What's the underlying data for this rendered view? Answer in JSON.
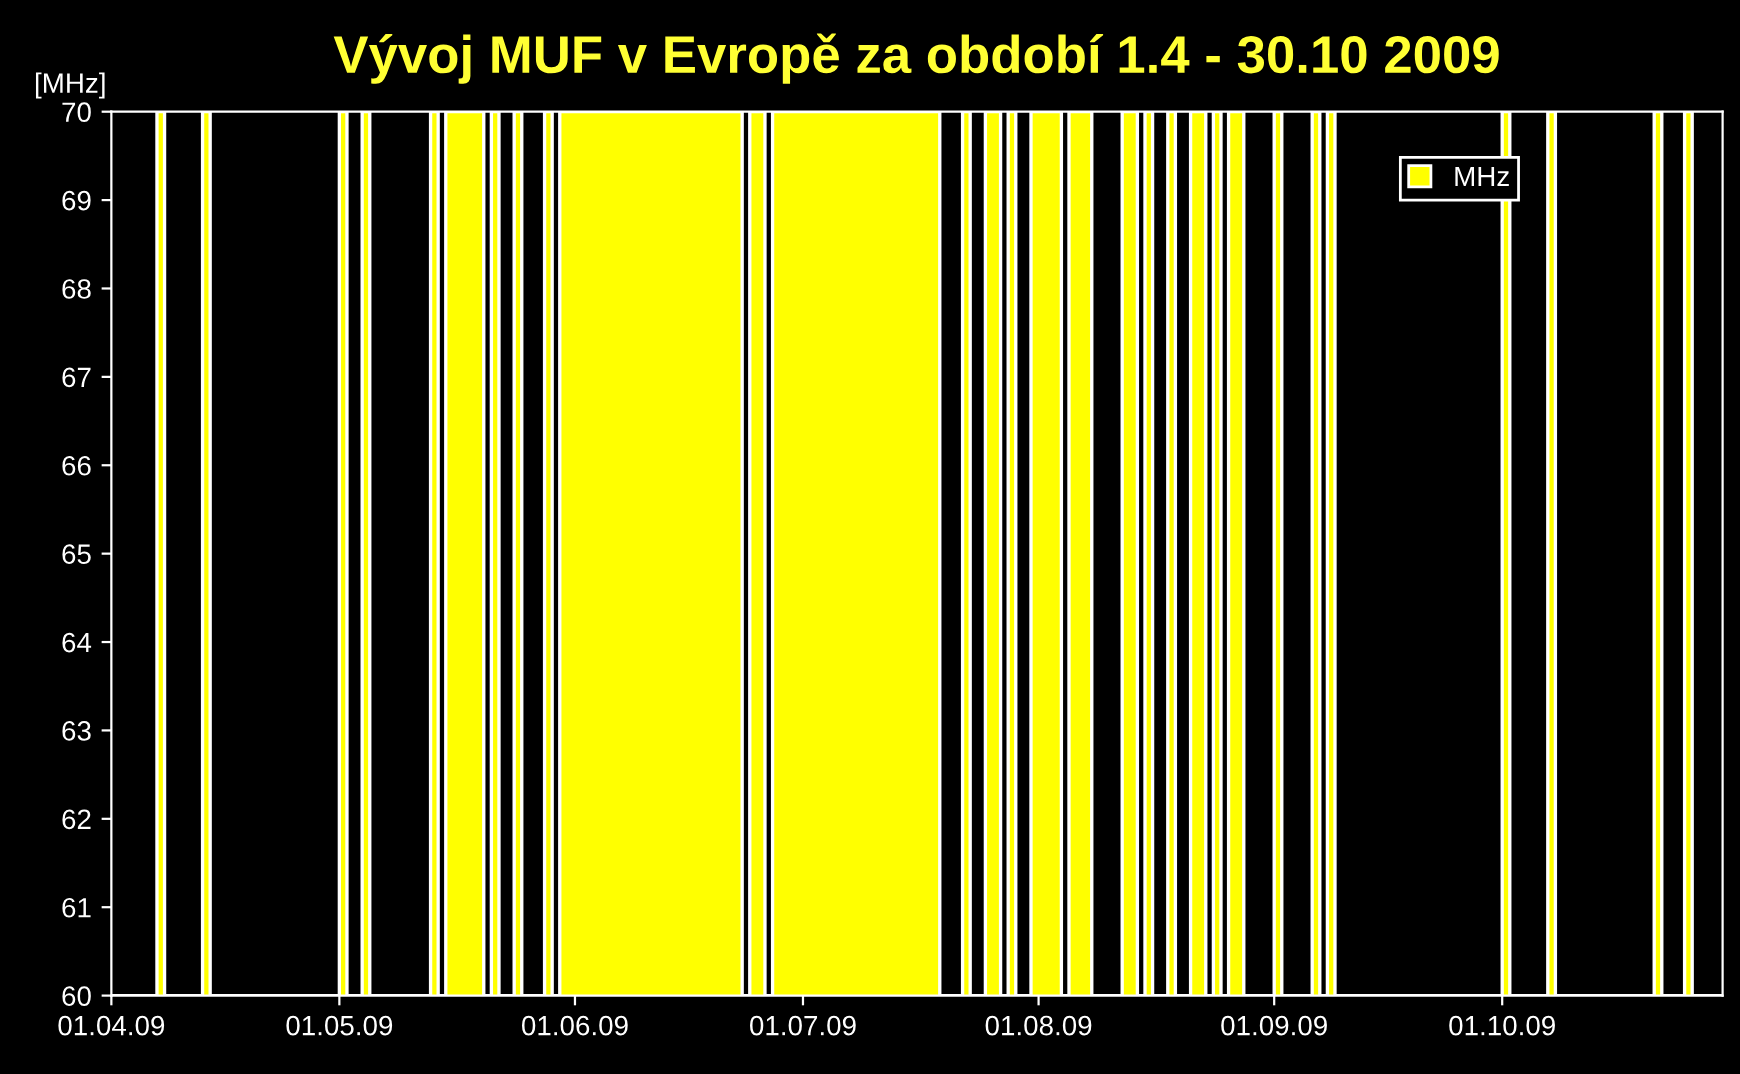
{
  "chart_data": {
    "type": "area",
    "title": "Vývoj MUF v Evropě za období 1.4 - 30.10 2009",
    "ylabel": "[MHz]",
    "series": [
      {
        "name": "MHz",
        "color": "#ffff00",
        "x": [
          "2009-04-01",
          "2009-04-07",
          "2009-04-08",
          "2009-04-13",
          "2009-04-14",
          "2009-05-01",
          "2009-05-02",
          "2009-05-04",
          "2009-05-05",
          "2009-05-13",
          "2009-05-14",
          "2009-05-15",
          "2009-05-20",
          "2009-05-21",
          "2009-05-22",
          "2009-05-24",
          "2009-05-25",
          "2009-05-28",
          "2009-05-29",
          "2009-05-30",
          "2009-06-23",
          "2009-06-24",
          "2009-06-26",
          "2009-06-27",
          "2009-07-19",
          "2009-07-22",
          "2009-07-23",
          "2009-07-25",
          "2009-07-27",
          "2009-07-28",
          "2009-07-29",
          "2009-07-31",
          "2009-08-04",
          "2009-08-05",
          "2009-08-08",
          "2009-08-12",
          "2009-08-14",
          "2009-08-15",
          "2009-08-16",
          "2009-08-18",
          "2009-08-19",
          "2009-08-21",
          "2009-08-23",
          "2009-08-24",
          "2009-08-25",
          "2009-08-26",
          "2009-08-28",
          "2009-09-01",
          "2009-09-02",
          "2009-09-06",
          "2009-09-07",
          "2009-09-08",
          "2009-09-09",
          "2009-10-01",
          "2009-10-02",
          "2009-10-07",
          "2009-10-08",
          "2009-10-21",
          "2009-10-22",
          "2009-10-25",
          "2009-10-26",
          "2009-10-30"
        ],
        "values": [
          60,
          70,
          60,
          70,
          60,
          70,
          60,
          70,
          60,
          70,
          60,
          70,
          60,
          70,
          60,
          70,
          60,
          70,
          60,
          70,
          60,
          70,
          60,
          70,
          60,
          70,
          60,
          70,
          60,
          70,
          60,
          70,
          60,
          70,
          60,
          70,
          60,
          70,
          60,
          70,
          60,
          70,
          60,
          70,
          60,
          70,
          60,
          70,
          60,
          70,
          60,
          70,
          60,
          70,
          60,
          70,
          60,
          70,
          60,
          70,
          60,
          60
        ]
      }
    ],
    "xlim": [
      "2009-04-01",
      "2009-10-30"
    ],
    "xticks": [
      {
        "value": "2009-04-01",
        "label": "01.04.09"
      },
      {
        "value": "2009-05-01",
        "label": "01.05.09"
      },
      {
        "value": "2009-06-01",
        "label": "01.06.09"
      },
      {
        "value": "2009-07-01",
        "label": "01.07.09"
      },
      {
        "value": "2009-08-01",
        "label": "01.08.09"
      },
      {
        "value": "2009-09-01",
        "label": "01.09.09"
      },
      {
        "value": "2009-10-01",
        "label": "01.10.09"
      }
    ],
    "ylim": [
      60,
      70
    ],
    "yticks": [
      60,
      61,
      62,
      63,
      64,
      65,
      66,
      67,
      68,
      69,
      70
    ],
    "grid": false,
    "legend": "top right"
  }
}
